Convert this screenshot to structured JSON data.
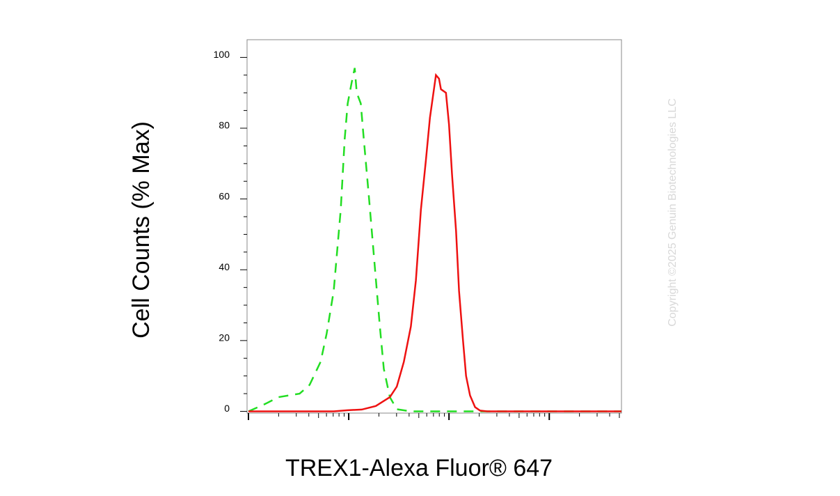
{
  "chart_data": {
    "type": "line",
    "y_label": "Cell Counts (% Max)",
    "x_label": "TREX1-Alexa Fluor® 647",
    "watermark": "Copyright ©2025 Genuin Biotechnologies LLC",
    "xlim": [
      0,
      3.72
    ],
    "xticks": [
      0,
      1,
      2,
      3
    ],
    "ylim": [
      -0.5,
      105
    ],
    "yticks": [
      0,
      20,
      40,
      60,
      80,
      100
    ],
    "series": [
      {
        "color": "#22dd22",
        "dashed": true,
        "x": [
          0,
          0.16,
          0.3,
          0.51,
          0.61,
          0.72,
          0.78,
          0.85,
          0.92,
          0.96,
          0.99,
          1.03,
          1.06,
          1.08,
          1.12,
          1.15,
          1.2,
          1.26,
          1.31,
          1.35,
          1.41,
          1.48,
          1.62,
          3.72
        ],
        "values": [
          0,
          2,
          4,
          5,
          7.5,
          14,
          22,
          34,
          57,
          77,
          87,
          93,
          97,
          90,
          87,
          77,
          61,
          41,
          24,
          12,
          4,
          0.6,
          0,
          0
        ]
      },
      {
        "color": "#ee1111",
        "dashed": false,
        "x": [
          0,
          0.85,
          0.99,
          1.13,
          1.27,
          1.41,
          1.48,
          1.55,
          1.62,
          1.67,
          1.72,
          1.77,
          1.81,
          1.84,
          1.87,
          1.9,
          1.92,
          1.97,
          2.0,
          2.03,
          2.07,
          2.1,
          2.14,
          2.17,
          2.21,
          2.26,
          2.31,
          2.38,
          3.72
        ],
        "values": [
          0,
          0,
          0.3,
          0.5,
          1.5,
          4,
          7,
          14,
          24,
          37,
          57,
          71,
          83,
          89,
          95,
          94,
          91,
          90,
          81,
          67,
          51,
          34,
          20,
          10,
          4.5,
          1.2,
          0.2,
          0,
          0
        ]
      }
    ]
  }
}
